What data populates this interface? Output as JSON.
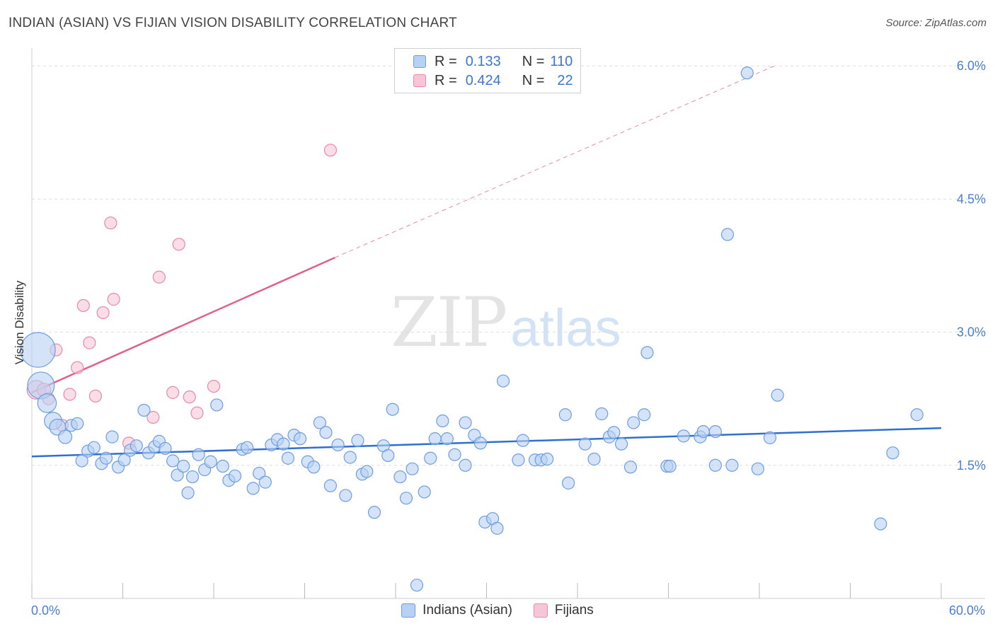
{
  "title": "INDIAN (ASIAN) VS FIJIAN VISION DISABILITY CORRELATION CHART",
  "source": "Source: ZipAtlas.com",
  "watermark": {
    "zip": "ZIP",
    "atlas": "atlas"
  },
  "legend": {
    "rows": [
      {
        "r_label": "R =",
        "r_value": "0.133",
        "n_label": "N =",
        "n_value": "110"
      },
      {
        "r_label": "R =",
        "r_value": "0.424",
        "n_label": "N =",
        "n_value": "22"
      }
    ]
  },
  "colors": {
    "indian_fill": "#b8d0f4",
    "indian_stroke": "#6d9ee0",
    "indian_line": "#2f6fd0",
    "fijian_fill": "#f7c6d6",
    "fijian_stroke": "#e88aa8",
    "fijian_line": "#e0608a",
    "tick_label": "#4a7fd0",
    "grid": "#dddddd"
  },
  "chart_data": {
    "type": "scatter",
    "title": "INDIAN (ASIAN) VS FIJIAN VISION DISABILITY CORRELATION CHART",
    "xlabel": "",
    "ylabel": "Vision Disability",
    "xlim": [
      0,
      60
    ],
    "ylim": [
      0,
      6.2
    ],
    "x_tick_labels": [
      "0.0%",
      "60.0%"
    ],
    "y_ticks": [
      1.5,
      3.0,
      4.5,
      6.0
    ],
    "y_tick_labels": [
      "1.5%",
      "3.0%",
      "4.5%",
      "6.0%"
    ],
    "grid": true,
    "legend_position": "top-center",
    "series": [
      {
        "name": "Indians (Asian)",
        "r": 0.133,
        "n": 110,
        "trend": {
          "x": [
            0,
            60
          ],
          "y": [
            1.6,
            1.92
          ]
        },
        "points": [
          [
            0.4,
            2.8,
            2.6
          ],
          [
            0.6,
            2.4,
            2.0
          ],
          [
            1.0,
            2.2,
            1.4
          ],
          [
            1.4,
            2.0,
            1.3
          ],
          [
            1.7,
            1.93,
            1.2
          ],
          [
            2.2,
            1.82,
            1.0
          ],
          [
            2.6,
            1.95,
            0.9
          ],
          [
            3.0,
            1.97,
            0.9
          ],
          [
            3.3,
            1.55,
            0.9
          ],
          [
            3.7,
            1.66,
            0.9
          ],
          [
            4.1,
            1.7,
            0.9
          ],
          [
            4.6,
            1.52,
            0.9
          ],
          [
            4.9,
            1.58,
            0.9
          ],
          [
            5.3,
            1.82,
            0.9
          ],
          [
            5.7,
            1.48,
            0.9
          ],
          [
            6.1,
            1.56,
            0.9
          ],
          [
            6.5,
            1.67,
            0.9
          ],
          [
            6.9,
            1.72,
            0.9
          ],
          [
            7.4,
            2.12,
            0.9
          ],
          [
            7.7,
            1.64,
            0.9
          ],
          [
            8.1,
            1.71,
            0.9
          ],
          [
            8.4,
            1.77,
            0.9
          ],
          [
            8.8,
            1.69,
            0.9
          ],
          [
            9.3,
            1.55,
            0.9
          ],
          [
            9.6,
            1.39,
            0.9
          ],
          [
            10.0,
            1.49,
            0.9
          ],
          [
            10.3,
            1.19,
            0.9
          ],
          [
            10.6,
            1.37,
            0.9
          ],
          [
            11.0,
            1.62,
            0.9
          ],
          [
            11.4,
            1.45,
            0.9
          ],
          [
            11.8,
            1.54,
            0.9
          ],
          [
            12.2,
            2.18,
            0.9
          ],
          [
            12.6,
            1.49,
            0.9
          ],
          [
            13.0,
            1.33,
            0.9
          ],
          [
            13.4,
            1.38,
            0.9
          ],
          [
            13.9,
            1.68,
            0.9
          ],
          [
            14.2,
            1.7,
            0.9
          ],
          [
            14.6,
            1.24,
            0.9
          ],
          [
            15.0,
            1.41,
            0.9
          ],
          [
            15.4,
            1.31,
            0.9
          ],
          [
            15.8,
            1.73,
            0.9
          ],
          [
            16.2,
            1.79,
            0.9
          ],
          [
            16.6,
            1.74,
            0.9
          ],
          [
            16.9,
            1.58,
            0.9
          ],
          [
            17.3,
            1.84,
            0.9
          ],
          [
            17.7,
            1.8,
            0.9
          ],
          [
            18.2,
            1.54,
            0.9
          ],
          [
            18.6,
            1.48,
            0.9
          ],
          [
            19.0,
            1.98,
            0.9
          ],
          [
            19.4,
            1.87,
            0.9
          ],
          [
            19.7,
            1.27,
            0.9
          ],
          [
            20.2,
            1.73,
            0.9
          ],
          [
            20.7,
            1.16,
            0.9
          ],
          [
            21.0,
            1.59,
            0.9
          ],
          [
            21.5,
            1.78,
            0.9
          ],
          [
            21.8,
            1.4,
            0.9
          ],
          [
            22.1,
            1.43,
            0.9
          ],
          [
            22.6,
            0.97,
            0.9
          ],
          [
            23.2,
            1.72,
            0.9
          ],
          [
            23.5,
            1.61,
            0.9
          ],
          [
            23.8,
            2.13,
            0.9
          ],
          [
            24.3,
            1.37,
            0.9
          ],
          [
            24.7,
            1.13,
            0.9
          ],
          [
            25.1,
            1.46,
            0.9
          ],
          [
            25.4,
            0.15,
            0.9
          ],
          [
            25.9,
            1.2,
            0.9
          ],
          [
            26.3,
            1.58,
            0.9
          ],
          [
            26.6,
            1.8,
            0.9
          ],
          [
            27.1,
            2.0,
            0.9
          ],
          [
            27.4,
            1.8,
            0.9
          ],
          [
            27.9,
            1.62,
            0.9
          ],
          [
            28.6,
            1.5,
            0.9
          ],
          [
            28.6,
            1.98,
            0.9
          ],
          [
            29.2,
            1.84,
            0.9
          ],
          [
            29.6,
            1.75,
            0.9
          ],
          [
            29.9,
            0.86,
            0.9
          ],
          [
            30.4,
            0.9,
            0.9
          ],
          [
            30.7,
            0.79,
            0.9
          ],
          [
            31.1,
            2.45,
            0.9
          ],
          [
            32.1,
            1.56,
            0.9
          ],
          [
            32.4,
            1.78,
            0.9
          ],
          [
            33.2,
            1.56,
            0.9
          ],
          [
            33.6,
            1.56,
            0.9
          ],
          [
            34.0,
            1.57,
            0.9
          ],
          [
            35.2,
            2.07,
            0.9
          ],
          [
            35.4,
            1.3,
            0.9
          ],
          [
            36.5,
            1.74,
            0.9
          ],
          [
            37.1,
            1.57,
            0.9
          ],
          [
            37.6,
            2.08,
            0.9
          ],
          [
            38.1,
            1.82,
            0.9
          ],
          [
            38.4,
            1.87,
            0.9
          ],
          [
            38.9,
            1.74,
            0.9
          ],
          [
            39.7,
            1.98,
            0.9
          ],
          [
            40.4,
            2.07,
            0.9
          ],
          [
            39.5,
            1.48,
            0.9
          ],
          [
            40.6,
            2.77,
            0.9
          ],
          [
            41.9,
            1.49,
            0.9
          ],
          [
            42.1,
            1.49,
            0.9
          ],
          [
            43.0,
            1.83,
            0.9
          ],
          [
            44.1,
            1.82,
            0.9
          ],
          [
            45.1,
            1.5,
            0.9
          ],
          [
            45.1,
            1.88,
            0.9
          ],
          [
            46.2,
            1.5,
            0.9
          ],
          [
            47.2,
            5.92,
            0.9
          ],
          [
            47.9,
            1.46,
            0.9
          ],
          [
            48.7,
            1.81,
            0.9
          ],
          [
            49.2,
            2.29,
            0.9
          ],
          [
            45.9,
            4.1,
            0.9
          ],
          [
            56.0,
            0.84,
            0.9
          ],
          [
            56.8,
            1.64,
            0.9
          ],
          [
            58.4,
            2.07,
            0.9
          ],
          [
            44.3,
            1.88,
            0.9
          ]
        ]
      },
      {
        "name": "Fijians",
        "r": 0.424,
        "n": 22,
        "trend": {
          "x": [
            0,
            20
          ],
          "y": [
            2.32,
            3.84
          ]
        },
        "trend_extension": {
          "x": [
            20,
            49
          ],
          "y": [
            3.84,
            6.0
          ]
        },
        "points": [
          [
            0.3,
            2.35,
            1.4
          ],
          [
            0.8,
            2.35,
            1.0
          ],
          [
            1.1,
            2.25,
            0.9
          ],
          [
            1.6,
            2.8,
            0.9
          ],
          [
            2.0,
            1.95,
            0.9
          ],
          [
            2.5,
            2.3,
            0.9
          ],
          [
            3.0,
            2.6,
            0.9
          ],
          [
            3.4,
            3.3,
            0.9
          ],
          [
            3.8,
            2.88,
            0.9
          ],
          [
            4.2,
            2.28,
            0.9
          ],
          [
            4.7,
            3.22,
            0.9
          ],
          [
            5.2,
            4.23,
            0.9
          ],
          [
            5.4,
            3.37,
            0.9
          ],
          [
            6.4,
            1.75,
            0.9
          ],
          [
            8.0,
            2.04,
            0.9
          ],
          [
            8.4,
            3.62,
            0.9
          ],
          [
            9.3,
            2.32,
            0.9
          ],
          [
            9.7,
            3.99,
            0.9
          ],
          [
            10.4,
            2.27,
            0.9
          ],
          [
            10.9,
            2.09,
            0.9
          ],
          [
            12.0,
            2.39,
            0.9
          ],
          [
            19.7,
            5.05,
            0.9
          ]
        ]
      }
    ]
  },
  "bottom_legend": {
    "series_1": "Indians (Asian)",
    "series_2": "Fijians"
  }
}
